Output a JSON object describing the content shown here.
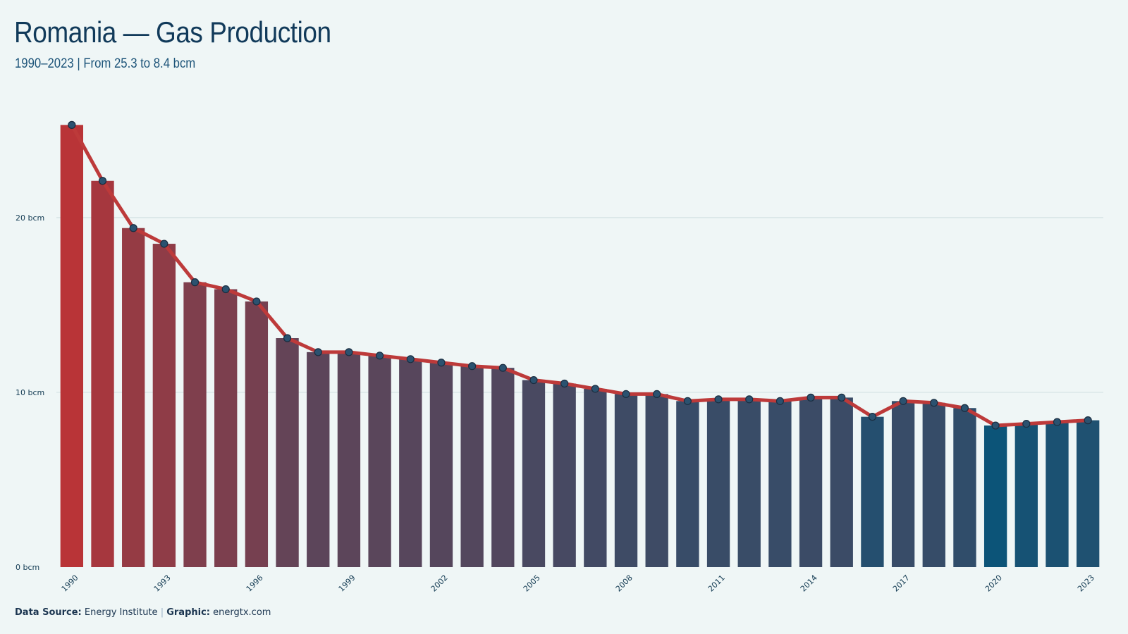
{
  "header": {
    "title": "Romania — Gas Production",
    "subtitle": "1990–2023 | From 25.3 to 8.4 bcm"
  },
  "footer": {
    "source_label": "Data Source:",
    "source_value": "Energy Institute",
    "separator": "|",
    "graphic_label": "Graphic:",
    "graphic_value": "energtx.com"
  },
  "chart_data": {
    "type": "bar",
    "title": "Romania — Gas Production",
    "subtitle": "1990–2023 | From 25.3 to 8.4 bcm",
    "xlabel": "",
    "ylabel": "",
    "unit": "bcm",
    "ylim": [
      0,
      26
    ],
    "y_ticks": [
      0,
      10,
      20
    ],
    "y_tick_labels": [
      "0 bcm",
      "10 bcm",
      "20 bcm"
    ],
    "grid": "horizontal",
    "x_tick_labels": [
      "1990",
      "1993",
      "1996",
      "1999",
      "2002",
      "2005",
      "2008",
      "2011",
      "2014",
      "2017",
      "2020",
      "2023"
    ],
    "categories": [
      "1990",
      "1991",
      "1992",
      "1993",
      "1994",
      "1995",
      "1996",
      "1997",
      "1998",
      "1999",
      "2000",
      "2001",
      "2002",
      "2003",
      "2004",
      "2005",
      "2006",
      "2007",
      "2008",
      "2009",
      "2010",
      "2011",
      "2012",
      "2013",
      "2014",
      "2015",
      "2016",
      "2017",
      "2018",
      "2019",
      "2020",
      "2021",
      "2022",
      "2023"
    ],
    "values": [
      25.3,
      22.1,
      19.4,
      18.5,
      16.3,
      15.9,
      15.2,
      13.1,
      12.3,
      12.3,
      12.1,
      11.9,
      11.7,
      11.5,
      11.4,
      10.7,
      10.5,
      10.2,
      9.9,
      9.9,
      9.5,
      9.6,
      9.6,
      9.5,
      9.7,
      9.7,
      8.6,
      9.5,
      9.4,
      9.1,
      8.1,
      8.2,
      8.3,
      8.4
    ],
    "overlay": "line with markers",
    "colors": {
      "bar_high": "#b93437",
      "bar_low": "#0c5478",
      "line": "#bd3a3a",
      "marker_fill": "#2b5270",
      "marker_stroke": "#1a2d40",
      "grid": "#d3e2e4",
      "tick_text": "#123a52"
    }
  }
}
